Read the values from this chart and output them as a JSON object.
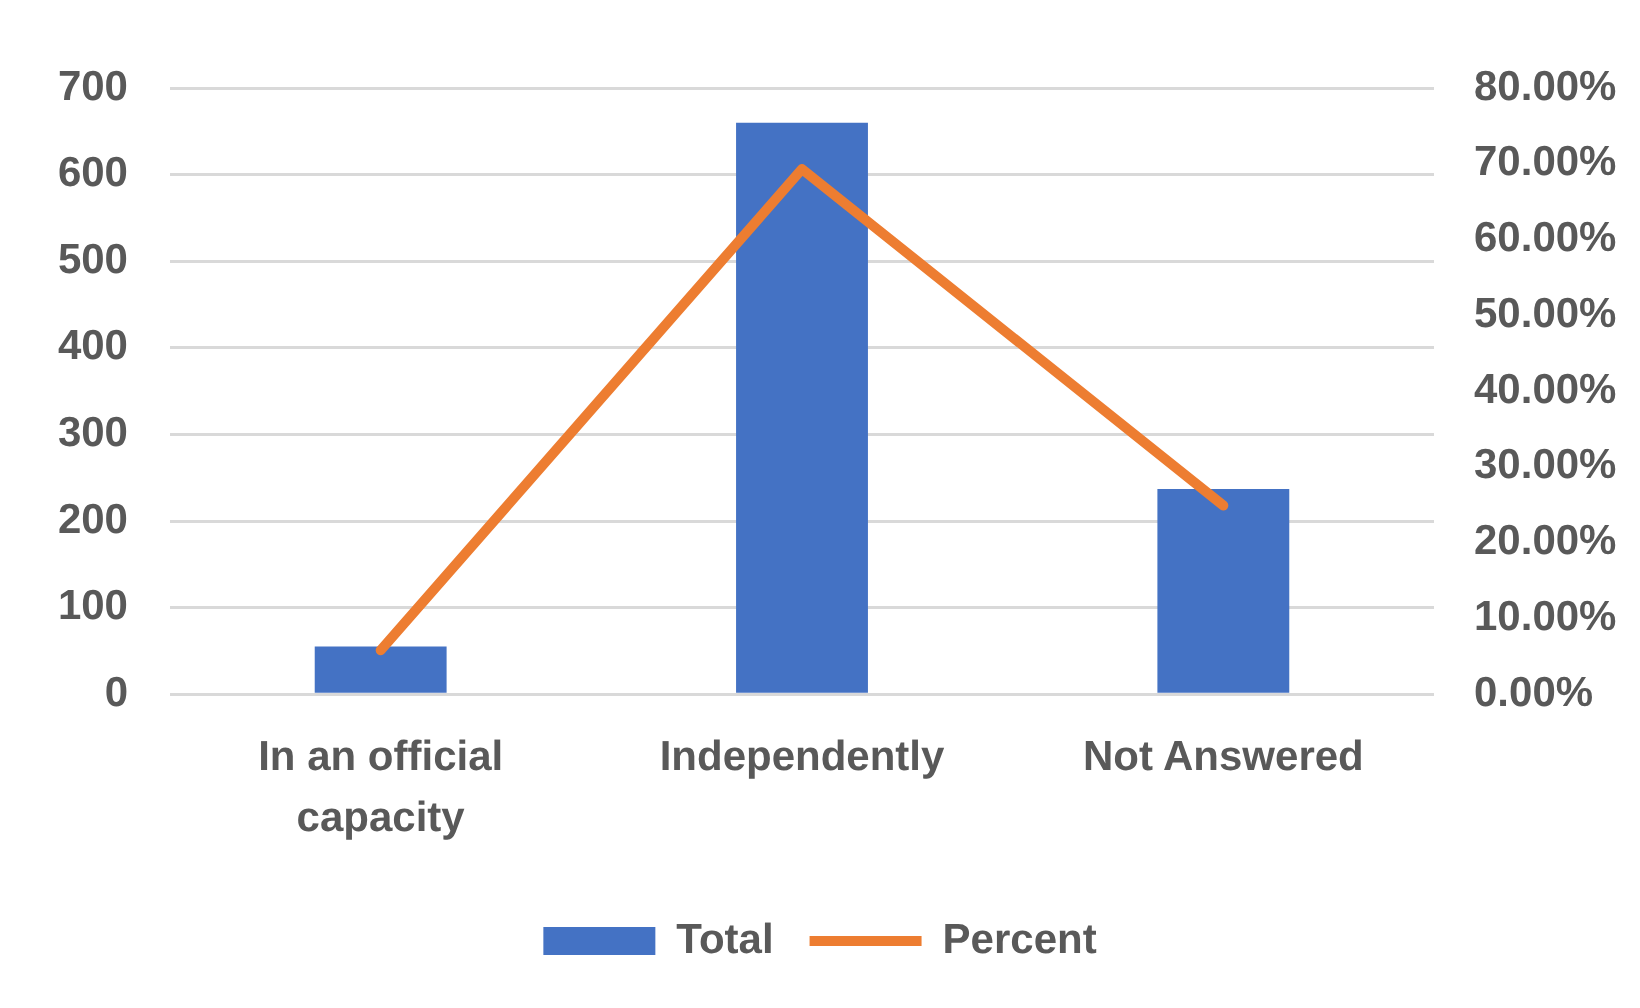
{
  "chart_data": {
    "type": "bar",
    "categories": [
      "In an official capacity",
      "Independently",
      "Not Answered"
    ],
    "series": [
      {
        "name": "Total",
        "color": "#4472c4",
        "values": [
          55,
          660,
          237
        ]
      },
      {
        "name": "Percent",
        "type": "line",
        "axis": "y2",
        "color": "#ed7d31",
        "values": [
          5.8,
          69.3,
          24.9
        ]
      }
    ],
    "ylim": [
      0,
      700
    ],
    "yticks": [
      0,
      100,
      200,
      300,
      400,
      500,
      600,
      700
    ],
    "y2lim": [
      0,
      80
    ],
    "y2ticks": [
      {
        "value": 0,
        "label": "0.00%"
      },
      {
        "value": 10,
        "label": "10.00%"
      },
      {
        "value": 20,
        "label": "20.00%"
      },
      {
        "value": 30,
        "label": "30.00%"
      },
      {
        "value": 40,
        "label": "40.00%"
      },
      {
        "value": 50,
        "label": "50.00%"
      },
      {
        "value": 60,
        "label": "60.00%"
      },
      {
        "value": 70,
        "label": "70.00%"
      },
      {
        "value": 80,
        "label": "80.00%"
      }
    ],
    "grid": "y",
    "legend": "bottom",
    "marker": "none"
  }
}
